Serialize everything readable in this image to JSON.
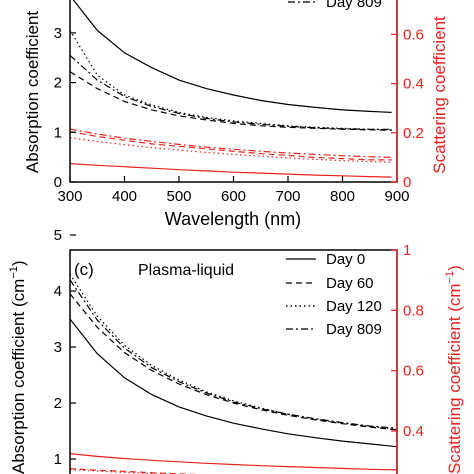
{
  "chart_data": [
    {
      "type": "line",
      "panel": "top",
      "xlabel": "Wavelength (nm)",
      "ylabel_left": "Absorption coefficient",
      "ylabel_right": "Scattering coefficient",
      "xlim": [
        300,
        900
      ],
      "ylim_left": [
        0,
        3.8
      ],
      "ylim_right": [
        0,
        0.7
      ],
      "x_ticks": [
        "300",
        "400",
        "500",
        "600",
        "700",
        "800",
        "900"
      ],
      "y_ticks_left": [
        "0",
        "1",
        "2",
        "3"
      ],
      "y_ticks_right": [
        "0",
        "0.2",
        "0.4",
        "0.6"
      ],
      "legend": [
        "Day 809"
      ],
      "absorption_series": [
        {
          "name": "Day 0",
          "style": "solid",
          "x": [
            300,
            350,
            400,
            450,
            500,
            550,
            600,
            650,
            700,
            750,
            800,
            850,
            890
          ],
          "y": [
            3.75,
            3.05,
            2.6,
            2.3,
            2.05,
            1.88,
            1.75,
            1.64,
            1.56,
            1.5,
            1.45,
            1.42,
            1.4
          ]
        },
        {
          "name": "Day 60",
          "style": "dash",
          "x": [
            300,
            350,
            400,
            450,
            500,
            550,
            600,
            650,
            700,
            750,
            800,
            850,
            890
          ],
          "y": [
            2.22,
            1.88,
            1.62,
            1.45,
            1.33,
            1.25,
            1.18,
            1.13,
            1.1,
            1.08,
            1.06,
            1.05,
            1.04
          ]
        },
        {
          "name": "Day 120",
          "style": "dot",
          "x": [
            300,
            350,
            400,
            450,
            500,
            550,
            600,
            650,
            700,
            750,
            800,
            850,
            890
          ],
          "y": [
            3.05,
            2.15,
            1.75,
            1.55,
            1.4,
            1.3,
            1.23,
            1.18,
            1.13,
            1.1,
            1.08,
            1.06,
            1.05
          ]
        },
        {
          "name": "Day 809",
          "style": "dashdot",
          "x": [
            300,
            350,
            400,
            450,
            500,
            550,
            600,
            650,
            700,
            750,
            800,
            850,
            890
          ],
          "y": [
            2.55,
            2.05,
            1.72,
            1.52,
            1.38,
            1.28,
            1.21,
            1.16,
            1.12,
            1.09,
            1.07,
            1.06,
            1.06
          ]
        }
      ],
      "scattering_series": [
        {
          "name": "Day 0",
          "style": "solid",
          "x": [
            300,
            350,
            400,
            450,
            500,
            550,
            600,
            650,
            700,
            750,
            800,
            850,
            890
          ],
          "y": [
            0.075,
            0.068,
            0.062,
            0.056,
            0.05,
            0.045,
            0.04,
            0.036,
            0.032,
            0.028,
            0.025,
            0.022,
            0.02
          ]
        },
        {
          "name": "Day 60",
          "style": "dash",
          "x": [
            300,
            350,
            400,
            450,
            500,
            550,
            600,
            650,
            700,
            750,
            800,
            850,
            890
          ],
          "y": [
            0.205,
            0.185,
            0.17,
            0.155,
            0.145,
            0.135,
            0.125,
            0.115,
            0.108,
            0.1,
            0.095,
            0.09,
            0.09
          ]
        },
        {
          "name": "Day 120",
          "style": "dot",
          "x": [
            300,
            350,
            400,
            450,
            500,
            550,
            600,
            650,
            700,
            750,
            800,
            850,
            890
          ],
          "y": [
            0.18,
            0.165,
            0.152,
            0.14,
            0.13,
            0.12,
            0.112,
            0.105,
            0.098,
            0.092,
            0.087,
            0.083,
            0.08
          ]
        },
        {
          "name": "Day 809",
          "style": "dashdot",
          "x": [
            300,
            350,
            400,
            450,
            500,
            550,
            600,
            650,
            700,
            750,
            800,
            850,
            890
          ],
          "y": [
            0.215,
            0.195,
            0.178,
            0.165,
            0.153,
            0.142,
            0.133,
            0.125,
            0.118,
            0.112,
            0.107,
            0.103,
            0.1
          ]
        }
      ]
    },
    {
      "type": "line",
      "panel": "(c)",
      "title": "Plasma-liquid",
      "ylabel_left": "Absorption coefficient (cm",
      "ylabel_left_sup": "−1",
      "ylabel_left_end": ")",
      "ylabel_right": "Scattering coefficient (cm",
      "ylabel_right_sup": "−1",
      "ylabel_right_end": ")",
      "xlim": [
        300,
        900
      ],
      "ylim_left": [
        0,
        5
      ],
      "ylim_right": [
        0,
        1
      ],
      "y_ticks_left": [
        "1",
        "2",
        "3",
        "4",
        "5"
      ],
      "y_ticks_right": [
        "0.4",
        "0.6",
        "0.8",
        "1"
      ],
      "legend": [
        "Day 0",
        "Day 60",
        "Day 120",
        "Day 809"
      ],
      "absorption_series": [
        {
          "name": "Day 0",
          "style": "solid",
          "x": [
            300,
            350,
            400,
            450,
            500,
            550,
            600,
            650,
            700,
            750,
            800,
            850,
            900
          ],
          "y": [
            3.5,
            2.88,
            2.45,
            2.15,
            1.93,
            1.77,
            1.64,
            1.54,
            1.45,
            1.38,
            1.32,
            1.27,
            1.22
          ]
        },
        {
          "name": "Day 60",
          "style": "dash",
          "x": [
            300,
            350,
            400,
            450,
            500,
            550,
            600,
            650,
            700,
            750,
            800,
            850,
            900
          ],
          "y": [
            3.95,
            3.35,
            2.9,
            2.58,
            2.34,
            2.15,
            2.0,
            1.88,
            1.78,
            1.7,
            1.63,
            1.57,
            1.52
          ]
        },
        {
          "name": "Day 120",
          "style": "dot",
          "x": [
            300,
            350,
            400,
            450,
            500,
            550,
            600,
            650,
            700,
            750,
            800,
            850,
            900
          ],
          "y": [
            4.3,
            3.55,
            3.03,
            2.67,
            2.41,
            2.2,
            2.04,
            1.91,
            1.8,
            1.71,
            1.64,
            1.58,
            1.53
          ]
        },
        {
          "name": "Day 809",
          "style": "dashdot",
          "x": [
            300,
            350,
            400,
            450,
            500,
            550,
            600,
            650,
            700,
            750,
            800,
            850,
            900
          ],
          "y": [
            4.2,
            3.48,
            2.98,
            2.63,
            2.38,
            2.18,
            2.02,
            1.9,
            1.8,
            1.72,
            1.65,
            1.59,
            1.55
          ]
        }
      ],
      "scattering_series": [
        {
          "name": "Day 0",
          "style": "solid",
          "x": [
            300,
            350,
            400,
            450,
            500,
            550,
            600,
            650,
            700,
            750,
            800,
            850,
            900
          ],
          "y": [
            0.325,
            0.316,
            0.309,
            0.303,
            0.298,
            0.293,
            0.289,
            0.285,
            0.282,
            0.279,
            0.276,
            0.273,
            0.271
          ]
        },
        {
          "name": "Day 60",
          "style": "dash",
          "x": [
            300,
            350,
            400,
            450,
            500,
            550,
            600,
            650,
            700,
            750,
            800,
            850,
            900
          ],
          "y": [
            0.275,
            0.27,
            0.266,
            0.262,
            0.258,
            0.255,
            0.252,
            0.25,
            0.248,
            0.246,
            0.244,
            0.242,
            0.24
          ]
        },
        {
          "name": "Day 120",
          "style": "dot",
          "x": [
            300,
            350,
            400,
            450,
            500,
            550,
            600,
            650,
            700,
            750,
            800,
            850,
            900
          ],
          "y": [
            0.272,
            0.267,
            0.263,
            0.259,
            0.256,
            0.253,
            0.25,
            0.248,
            0.246,
            0.244,
            0.242,
            0.24,
            0.239
          ]
        }
      ]
    }
  ],
  "colors": {
    "absorption": "#000000",
    "scattering": "#e8231f"
  }
}
